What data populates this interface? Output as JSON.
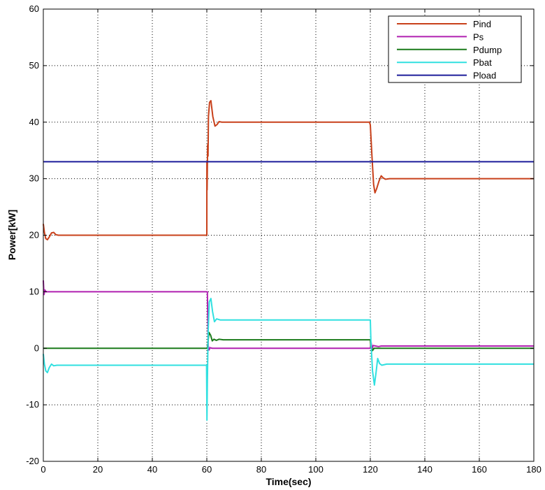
{
  "chart_data": {
    "type": "line",
    "title": "",
    "xlabel": "Time(sec)",
    "ylabel": "Power[kW]",
    "xlim": [
      0,
      180
    ],
    "ylim": [
      -20,
      60
    ],
    "xticks": [
      0,
      20,
      40,
      60,
      80,
      100,
      120,
      140,
      160,
      180
    ],
    "yticks": [
      -20,
      -10,
      0,
      10,
      20,
      30,
      40,
      50,
      60
    ],
    "grid": "dotted",
    "legend_position": "top-right",
    "series": [
      {
        "name": "Pind",
        "color": "#c8401a",
        "points": [
          [
            0,
            22
          ],
          [
            0.4,
            20.5
          ],
          [
            0.9,
            19.4
          ],
          [
            1.5,
            19.2
          ],
          [
            2.2,
            19.7
          ],
          [
            3,
            20.4
          ],
          [
            3.8,
            20.5
          ],
          [
            4.6,
            20.1
          ],
          [
            5.5,
            20
          ],
          [
            60,
            20
          ],
          [
            60.02,
            33
          ],
          [
            60.1,
            28
          ],
          [
            60.3,
            36
          ],
          [
            60.45,
            34
          ],
          [
            60.6,
            41
          ],
          [
            61,
            43.5
          ],
          [
            61.5,
            43.8
          ],
          [
            62.2,
            41
          ],
          [
            63,
            39.3
          ],
          [
            63.8,
            39.6
          ],
          [
            64.5,
            40.1
          ],
          [
            65.5,
            40
          ],
          [
            119.7,
            40
          ],
          [
            120,
            39.5
          ],
          [
            120.6,
            34
          ],
          [
            121.2,
            29
          ],
          [
            121.7,
            27.5
          ],
          [
            122.3,
            28.2
          ],
          [
            123.2,
            29.6
          ],
          [
            124,
            30.5
          ],
          [
            124.8,
            30.1
          ],
          [
            125.6,
            29.9
          ],
          [
            127,
            30
          ],
          [
            180,
            30
          ]
        ]
      },
      {
        "name": "Ps",
        "color": "#b020b0",
        "points": [
          [
            0,
            12
          ],
          [
            0.25,
            9.5
          ],
          [
            0.6,
            10.3
          ],
          [
            1,
            10
          ],
          [
            60,
            10
          ],
          [
            60.2,
            10
          ],
          [
            60.5,
            0.5
          ],
          [
            60.8,
            -0.3
          ],
          [
            61.2,
            0.1
          ],
          [
            62,
            0
          ],
          [
            120,
            0
          ],
          [
            120.3,
            1
          ],
          [
            120.6,
            -0.2
          ],
          [
            121,
            0.5
          ],
          [
            123,
            0.3
          ],
          [
            124,
            0.4
          ],
          [
            180,
            0.4
          ]
        ]
      },
      {
        "name": "Pdump",
        "color": "#1a7a1a",
        "points": [
          [
            0,
            0
          ],
          [
            60,
            0
          ],
          [
            60.2,
            0
          ],
          [
            60.4,
            1
          ],
          [
            60.8,
            2.8
          ],
          [
            61.4,
            2.3
          ],
          [
            62,
            1.3
          ],
          [
            62.6,
            1.6
          ],
          [
            63.5,
            1.4
          ],
          [
            64.5,
            1.6
          ],
          [
            66,
            1.5
          ],
          [
            120,
            1.5
          ],
          [
            120.2,
            0.3
          ],
          [
            120.8,
            -0.4
          ],
          [
            121.4,
            0
          ],
          [
            122,
            0
          ],
          [
            180,
            0
          ]
        ]
      },
      {
        "name": "Pbat",
        "color": "#30e0e0",
        "points": [
          [
            0,
            -1
          ],
          [
            0.4,
            -2.8
          ],
          [
            0.9,
            -4
          ],
          [
            1.5,
            -4.3
          ],
          [
            2.2,
            -3.4
          ],
          [
            3,
            -2.8
          ],
          [
            3.8,
            -3.1
          ],
          [
            5,
            -3
          ],
          [
            59.9,
            -3
          ],
          [
            60.05,
            -12.7
          ],
          [
            60.2,
            -6
          ],
          [
            60.5,
            3
          ],
          [
            60.9,
            8.2
          ],
          [
            61.5,
            8.8
          ],
          [
            62.1,
            6.5
          ],
          [
            62.8,
            4.7
          ],
          [
            63.6,
            5.2
          ],
          [
            65,
            5
          ],
          [
            120,
            5
          ],
          [
            120.2,
            1.5
          ],
          [
            120.8,
            -4
          ],
          [
            121.5,
            -6.5
          ],
          [
            122.1,
            -4.3
          ],
          [
            122.7,
            -1.8
          ],
          [
            123.4,
            -2.7
          ],
          [
            124.2,
            -3
          ],
          [
            126,
            -2.8
          ],
          [
            180,
            -2.8
          ]
        ]
      },
      {
        "name": "Pload",
        "color": "#1c1c9a",
        "points": [
          [
            0,
            33
          ],
          [
            180,
            33
          ]
        ]
      }
    ]
  }
}
